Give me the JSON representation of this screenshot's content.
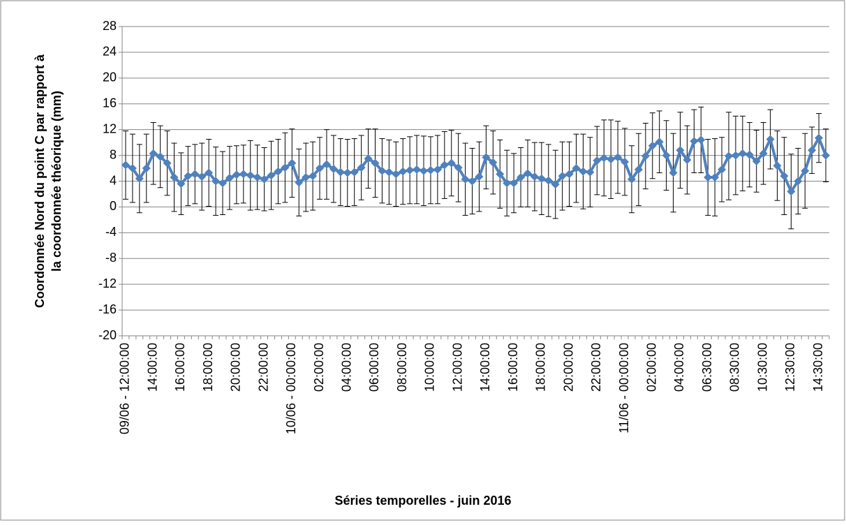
{
  "chart_data": {
    "type": "line",
    "xlabel": "Séries temporelles - juin 2016",
    "ylabel": "Coordonnée Nord du point C par rapport à la coordonnée théorique (mm)",
    "color": "#4f81bd",
    "grid": true,
    "ylim": [
      -20,
      28
    ],
    "yticks": [
      -20,
      -16,
      -12,
      -8,
      -4,
      0,
      4,
      8,
      12,
      16,
      20,
      24,
      28
    ],
    "categories": [
      "09/06 - 12:00:00",
      null,
      null,
      null,
      "14:00:00",
      null,
      null,
      null,
      "16:00:00",
      null,
      null,
      null,
      "18:00:00",
      null,
      null,
      null,
      "20:00:00",
      null,
      null,
      null,
      "22:00:00",
      null,
      null,
      null,
      "10/06 - 00:00:00",
      null,
      null,
      null,
      "02:00:00",
      null,
      null,
      null,
      "04:00:00",
      null,
      null,
      null,
      "06:00:00",
      null,
      null,
      null,
      "08:00:00",
      null,
      null,
      null,
      "10:00:00",
      null,
      null,
      null,
      "12:00:00",
      null,
      null,
      null,
      "14:00:00",
      null,
      null,
      null,
      "16:00:00",
      null,
      null,
      null,
      "18:00:00",
      null,
      null,
      null,
      "20:00:00",
      null,
      null,
      null,
      "22:00:00",
      null,
      null,
      null,
      "11/06 - 00:00:00",
      null,
      null,
      null,
      "02:00:00",
      null,
      null,
      null,
      "04:00:00",
      null,
      null,
      null,
      "06:30:00",
      null,
      null,
      null,
      "08:30:00",
      null,
      null,
      null,
      "10:30:00",
      null,
      null,
      null,
      "12:30:00",
      null,
      null,
      null,
      "14:30:00",
      null
    ],
    "values": [
      6.5,
      6.0,
      4.4,
      6.0,
      8.3,
      7.8,
      6.8,
      4.6,
      3.6,
      4.8,
      5.1,
      4.7,
      5.3,
      4.0,
      3.7,
      4.5,
      5.0,
      5.1,
      4.9,
      4.6,
      4.3,
      4.9,
      5.5,
      6.1,
      6.8,
      3.8,
      4.6,
      4.8,
      6.0,
      6.6,
      5.9,
      5.4,
      5.3,
      5.4,
      6.1,
      7.5,
      6.8,
      5.6,
      5.4,
      5.1,
      5.5,
      5.7,
      5.8,
      5.6,
      5.7,
      5.8,
      6.5,
      6.8,
      6.1,
      4.3,
      4.0,
      4.7,
      7.7,
      6.9,
      5.1,
      3.7,
      3.7,
      4.6,
      5.2,
      4.7,
      4.4,
      4.1,
      3.5,
      4.8,
      5.1,
      6.0,
      5.5,
      5.4,
      7.2,
      7.6,
      7.4,
      7.7,
      7.0,
      4.3,
      5.8,
      7.9,
      9.5,
      10.1,
      8.0,
      5.3,
      8.8,
      7.3,
      10.2,
      10.4,
      4.6,
      4.6,
      5.8,
      7.9,
      8.0,
      8.3,
      8.1,
      7.1,
      8.3,
      10.5,
      6.4,
      4.8,
      2.4,
      4.0,
      5.6,
      8.8,
      10.7,
      8.0
    ],
    "errors": [
      5.3,
      5.3,
      5.3,
      5.3,
      4.8,
      4.8,
      5.0,
      5.3,
      4.8,
      4.6,
      4.6,
      5.2,
      5.2,
      5.3,
      4.9,
      4.9,
      4.5,
      4.5,
      5.4,
      5.0,
      4.9,
      5.3,
      5.0,
      5.4,
      5.3,
      5.2,
      5.3,
      5.3,
      4.8,
      5.4,
      5.2,
      5.2,
      5.2,
      5.2,
      5.0,
      4.6,
      5.3,
      5.0,
      5.0,
      5.0,
      5.1,
      5.2,
      5.3,
      5.4,
      5.2,
      5.3,
      5.2,
      5.1,
      5.3,
      5.6,
      5.1,
      5.4,
      4.9,
      4.9,
      5.3,
      5.1,
      4.6,
      4.6,
      5.2,
      5.3,
      5.6,
      5.6,
      5.3,
      5.3,
      5.0,
      5.3,
      5.8,
      5.4,
      5.3,
      5.9,
      6.1,
      5.6,
      5.2,
      5.2,
      5.6,
      5.1,
      5.1,
      4.8,
      5.4,
      6.1,
      5.9,
      5.3,
      4.9,
      5.1,
      5.9,
      6.0,
      5.0,
      6.8,
      6.1,
      5.8,
      5.0,
      4.8,
      4.8,
      4.6,
      5.4,
      6.0,
      5.8,
      5.1,
      5.8,
      3.6,
      3.8,
      4.1
    ]
  }
}
